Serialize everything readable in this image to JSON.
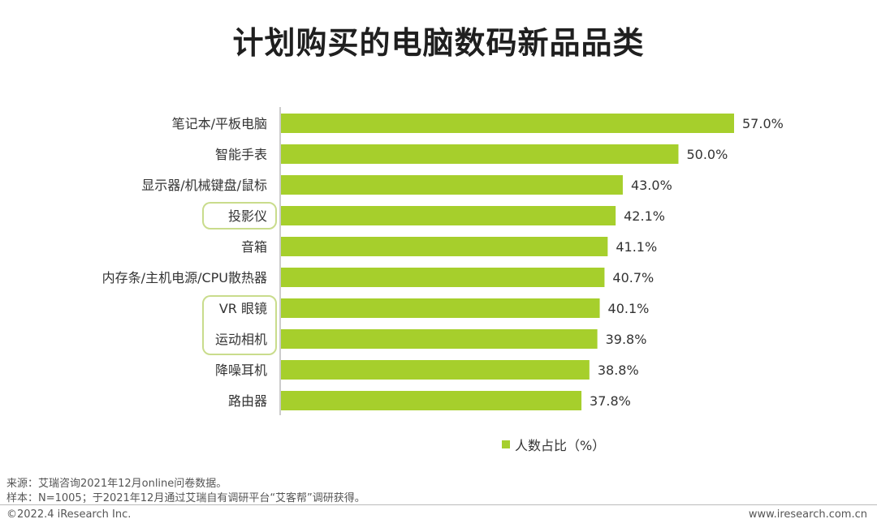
{
  "page_title": "计划购买的电脑数码新品品类",
  "colors": {
    "bar": "#a6cf2c",
    "axis": "#999999",
    "highlight_border": "#c9dc8c"
  },
  "chart_data": {
    "type": "bar",
    "orientation": "horizontal",
    "title": "计划购买的电脑数码新品品类",
    "categories": [
      "笔记本/平板电脑",
      "智能手表",
      "显示器/机械键盘/鼠标",
      "投影仪",
      "音箱",
      "内存条/主机电源/CPU散热器",
      "VR 眼镜",
      "运动相机",
      "降噪耳机",
      "路由器"
    ],
    "series": [
      {
        "name": "人数占比（%）",
        "values": [
          57.0,
          50.0,
          43.0,
          42.1,
          41.1,
          40.7,
          40.1,
          39.8,
          38.8,
          37.8
        ]
      }
    ],
    "data_labels": [
      "57.0%",
      "50.0%",
      "43.0%",
      "42.1%",
      "41.1%",
      "40.7%",
      "40.1%",
      "39.8%",
      "38.8%",
      "37.8%"
    ],
    "xlim": [
      0,
      57.0
    ],
    "grid": false,
    "legend_position": "bottom",
    "highlighted_categories": [
      "投影仪",
      "VR 眼镜",
      "运动相机"
    ]
  },
  "legend": {
    "label": "人数占比（%）"
  },
  "notes": {
    "source": "来源：艾瑞咨询2021年12月online问卷数据。",
    "sample": "样本：N=1005；于2021年12月通过艾瑞自有调研平台“艾客帮”调研获得。"
  },
  "footer": {
    "copyright": "©2022.4 iResearch Inc.",
    "website": "www.iresearch.com.cn"
  }
}
